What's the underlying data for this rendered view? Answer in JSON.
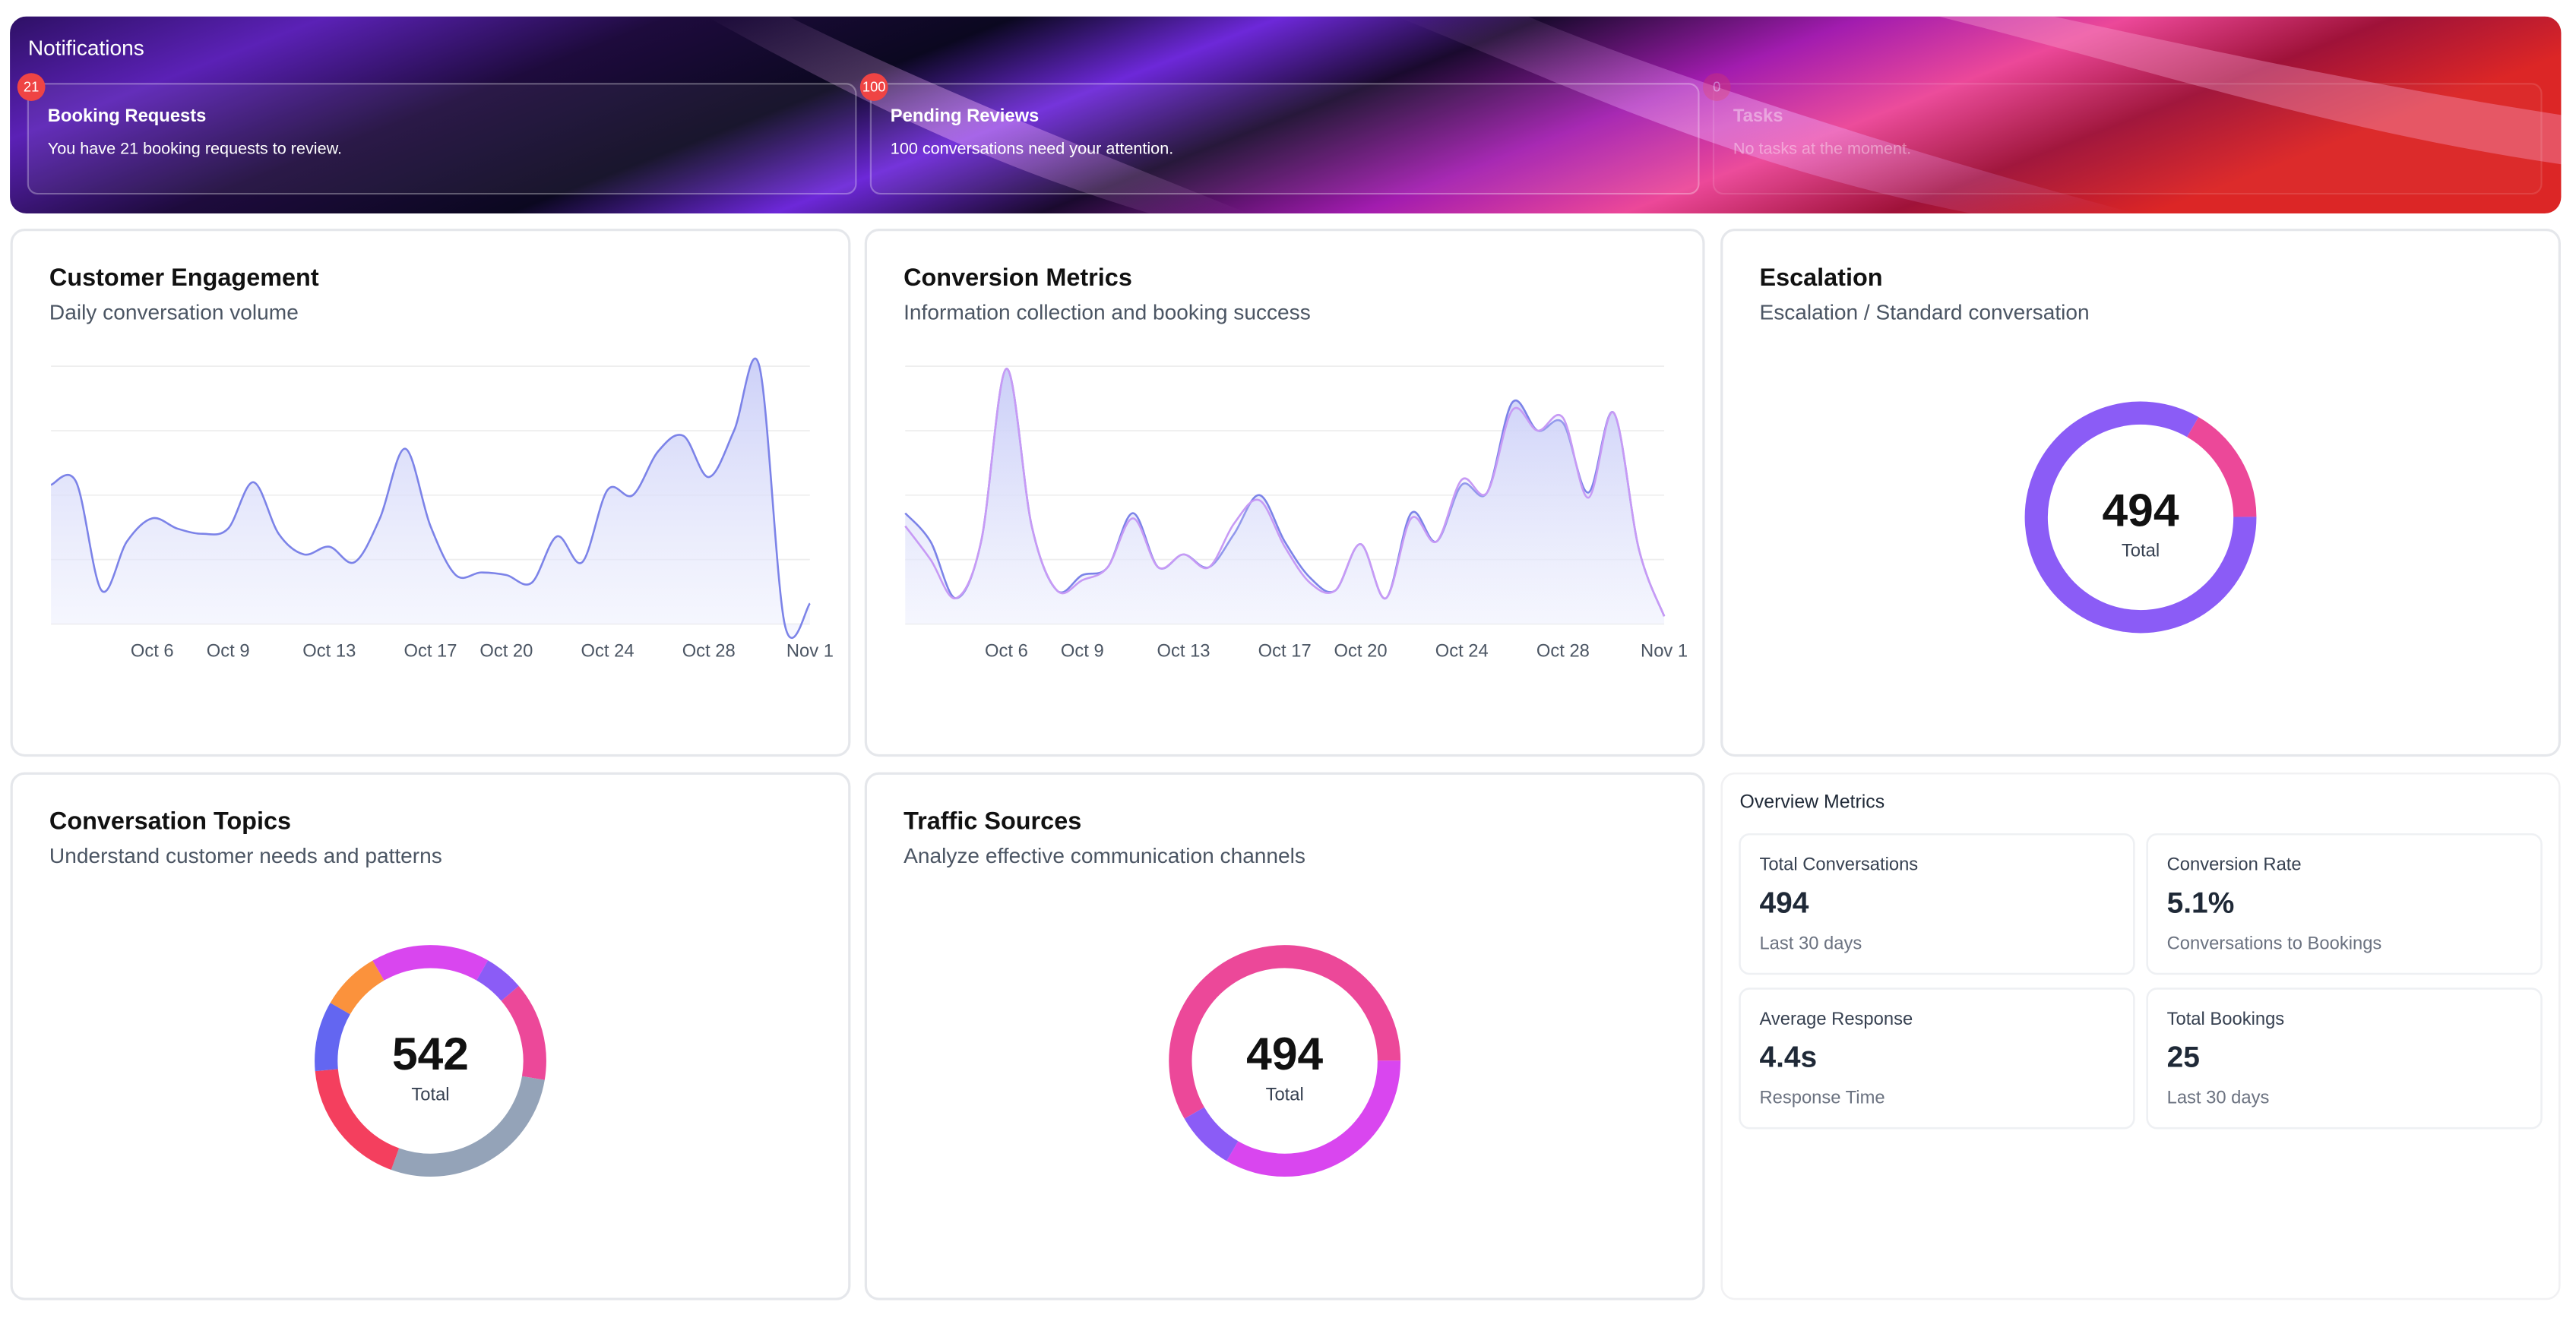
{
  "notifications": {
    "title": "Notifications",
    "items": [
      {
        "count": 21,
        "title": "Booking Requests",
        "text": "You have 21 booking requests to review."
      },
      {
        "count": 100,
        "title": "Pending Reviews",
        "text": "100 conversations need your attention."
      },
      {
        "count": 0,
        "title": "Tasks",
        "text": "No tasks at the moment."
      }
    ]
  },
  "chart_data": [
    {
      "type": "line",
      "title": "Customer Engagement",
      "subtitle": "Daily conversation volume",
      "categories": [
        null,
        null,
        null,
        null,
        "Oct 6",
        null,
        null,
        "Oct 9",
        null,
        null,
        null,
        "Oct 13",
        null,
        null,
        null,
        "Oct 17",
        null,
        null,
        "Oct 20",
        null,
        null,
        null,
        "Oct 24",
        null,
        null,
        null,
        "Oct 28",
        null,
        null,
        null,
        "Nov 1"
      ],
      "series": [
        {
          "color": "#7c83e8",
          "values": [
            54,
            55,
            13,
            32,
            41,
            37,
            35,
            37,
            55,
            35,
            27,
            30,
            24,
            41,
            68,
            38,
            19,
            20,
            19,
            16,
            34,
            24,
            52,
            50,
            67,
            73,
            57,
            75,
            100,
            0,
            8
          ]
        }
      ],
      "ylim": [
        0,
        100
      ],
      "yticks": [
        0,
        25,
        50,
        75,
        100
      ],
      "grid": true
    },
    {
      "type": "line",
      "title": "Conversion Metrics",
      "subtitle": "Information collection and booking success",
      "categories": [
        null,
        null,
        null,
        null,
        "Oct 6",
        null,
        null,
        "Oct 9",
        null,
        null,
        null,
        "Oct 13",
        null,
        null,
        null,
        "Oct 17",
        null,
        null,
        "Oct 20",
        null,
        null,
        null,
        "Oct 24",
        null,
        null,
        null,
        "Oct 28",
        null,
        null,
        null,
        "Nov 1"
      ],
      "series": [
        {
          "color": "#7c83e8",
          "values": [
            43,
            32,
            10,
            32,
            99,
            38,
            13,
            19,
            22,
            43,
            22,
            27,
            22,
            35,
            50,
            32,
            18,
            13,
            31,
            10,
            43,
            32,
            54,
            51,
            86,
            75,
            78,
            51,
            82,
            29,
            3
          ]
        },
        {
          "color": "#c79af5",
          "values": [
            38,
            25,
            10,
            32,
            99,
            38,
            13,
            17,
            22,
            41,
            22,
            27,
            22,
            39,
            48,
            30,
            16,
            13,
            31,
            10,
            41,
            32,
            56,
            51,
            83,
            75,
            80,
            49,
            82,
            29,
            3
          ]
        }
      ],
      "ylim": [
        0,
        100
      ],
      "yticks": [
        0,
        25,
        50,
        75,
        100
      ],
      "grid": true
    },
    {
      "type": "donut",
      "title": "Escalation",
      "subtitle": "Escalation / Standard conversation",
      "total": 494,
      "total_label": "Total",
      "values": [
        82,
        412
      ],
      "colors": [
        "#ec4899",
        "#8b5cf6"
      ]
    },
    {
      "type": "donut",
      "title": "Conversation Topics",
      "subtitle": "Understand customer needs and patterns",
      "total": 542,
      "total_label": "Total",
      "values": [
        90,
        30,
        75,
        151,
        98,
        53,
        45
      ],
      "colors": [
        "#d946ef",
        "#8b5cf6",
        "#ec4899",
        "#94a3b8",
        "#f43f5e",
        "#6366f1",
        "#fb923c"
      ]
    },
    {
      "type": "donut",
      "title": "Traffic Sources",
      "subtitle": "Analyze effective communication channels",
      "total": 494,
      "total_label": "Total",
      "values": [
        288,
        165,
        41
      ],
      "colors": [
        "#ec4899",
        "#d946ef",
        "#8b5cf6"
      ]
    }
  ],
  "overview": {
    "title": "Overview Metrics",
    "metrics": [
      {
        "label": "Total Conversations",
        "value": "494",
        "note": "Last 30 days"
      },
      {
        "label": "Conversion Rate",
        "value": "5.1%",
        "note": "Conversations to Bookings"
      },
      {
        "label": "Average Response",
        "value": "4.4s",
        "note": "Response Time"
      },
      {
        "label": "Total Bookings",
        "value": "25",
        "note": "Last 30 days"
      }
    ]
  }
}
